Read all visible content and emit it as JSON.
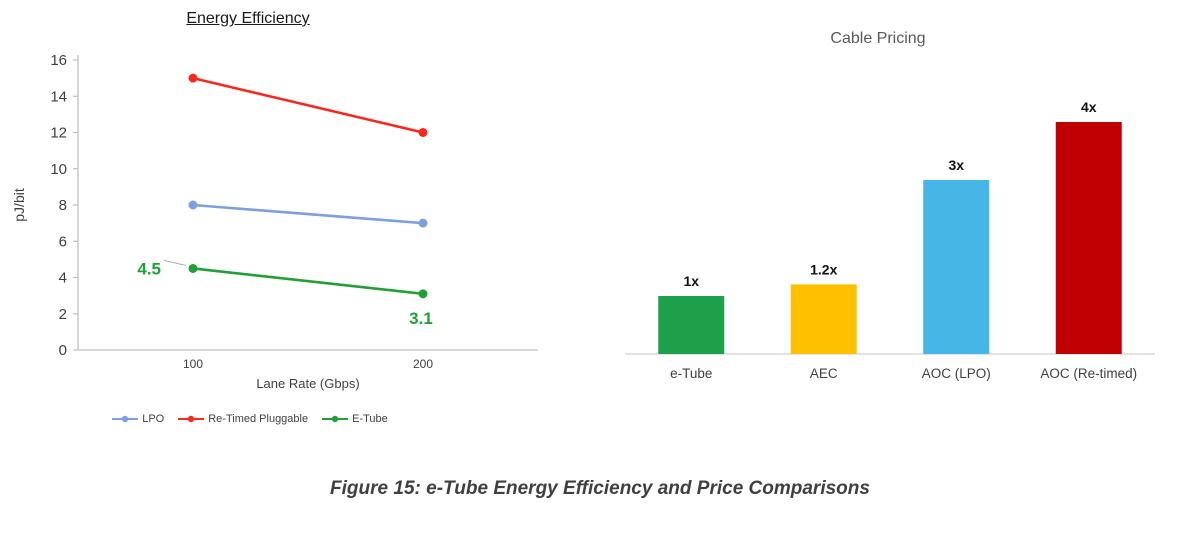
{
  "figure": {
    "caption": "Figure 15: e-Tube Energy Efficiency and Price Comparisons"
  },
  "chart_data": [
    {
      "type": "line",
      "title": "Energy Efficiency",
      "xlabel": "Lane Rate (Gbps)",
      "ylabel": "pJ/bit",
      "x": [
        100,
        200
      ],
      "x_tick_labels": [
        "100",
        "200"
      ],
      "ylim": [
        0,
        16
      ],
      "yticks": [
        0,
        2,
        4,
        6,
        8,
        10,
        12,
        14,
        16
      ],
      "grid": false,
      "legend_position": "bottom",
      "series": [
        {
          "name": "LPO",
          "values": [
            8,
            7
          ],
          "color": "#7C9FE0"
        },
        {
          "name": "Re-Timed Pluggable",
          "values": [
            15,
            12
          ],
          "color": "#F8281E"
        },
        {
          "name": "E-Tube",
          "values": [
            4.5,
            3.1
          ],
          "color": "#21A038"
        }
      ],
      "annotations": [
        {
          "series": "E-Tube",
          "point": 0,
          "text": "4.5",
          "position": "left"
        },
        {
          "series": "E-Tube",
          "point": 1,
          "text": "3.1",
          "position": "below"
        }
      ]
    },
    {
      "type": "bar",
      "title": "Cable Pricing",
      "categories": [
        "e-Tube",
        "AEC",
        "AOC (LPO)",
        "AOC (Re-timed)"
      ],
      "values": [
        1,
        1.2,
        3,
        4
      ],
      "data_labels": [
        "1x",
        "1.2x",
        "3x",
        "4x"
      ],
      "colors": [
        "#1CA049",
        "#FFC000",
        "#45B6E6",
        "#C00000"
      ],
      "ylim": [
        0,
        4.4
      ],
      "grid": false,
      "legend": false,
      "title_color": "#595959"
    }
  ]
}
